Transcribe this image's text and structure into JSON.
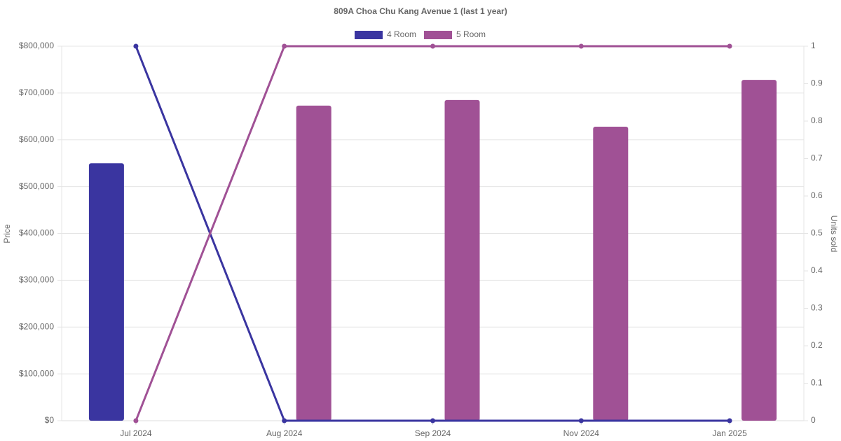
{
  "chart_data": {
    "type": "bar_line",
    "title": "809A Choa Chu Kang Avenue 1 (last 1 year)",
    "y_label": "Price",
    "y2_label": "Units sold",
    "categories": [
      "Jul 2024",
      "Aug 2024",
      "Sep 2024",
      "Nov 2024",
      "Jan 2025"
    ],
    "series": [
      {
        "name": "4 Room",
        "color": "#3a35a0",
        "values": [
          550000,
          null,
          null,
          null,
          null
        ],
        "y2_values": [
          1,
          0,
          0,
          0,
          0
        ]
      },
      {
        "name": "5 Room",
        "color": "#a05195",
        "values": [
          null,
          673000,
          685000,
          628000,
          728000
        ],
        "y2_values": [
          0,
          1,
          1,
          1,
          1
        ]
      }
    ],
    "ylim": [
      0,
      800000
    ],
    "yticks": [
      {
        "value": 0,
        "label": "$0"
      },
      {
        "value": 100000,
        "label": "$100,000"
      },
      {
        "value": 200000,
        "label": "$200,000"
      },
      {
        "value": 300000,
        "label": "$300,000"
      },
      {
        "value": 400000,
        "label": "$400,000"
      },
      {
        "value": 500000,
        "label": "$500,000"
      },
      {
        "value": 600000,
        "label": "$600,000"
      },
      {
        "value": 700000,
        "label": "$700,000"
      },
      {
        "value": 800000,
        "label": "$800,000"
      }
    ],
    "y2lim": [
      0,
      1
    ],
    "y2ticks": [
      0,
      0.1,
      0.2,
      0.3,
      0.4,
      0.5,
      0.6,
      0.7,
      0.8,
      0.9,
      1
    ],
    "grid": true,
    "legend": "top"
  }
}
